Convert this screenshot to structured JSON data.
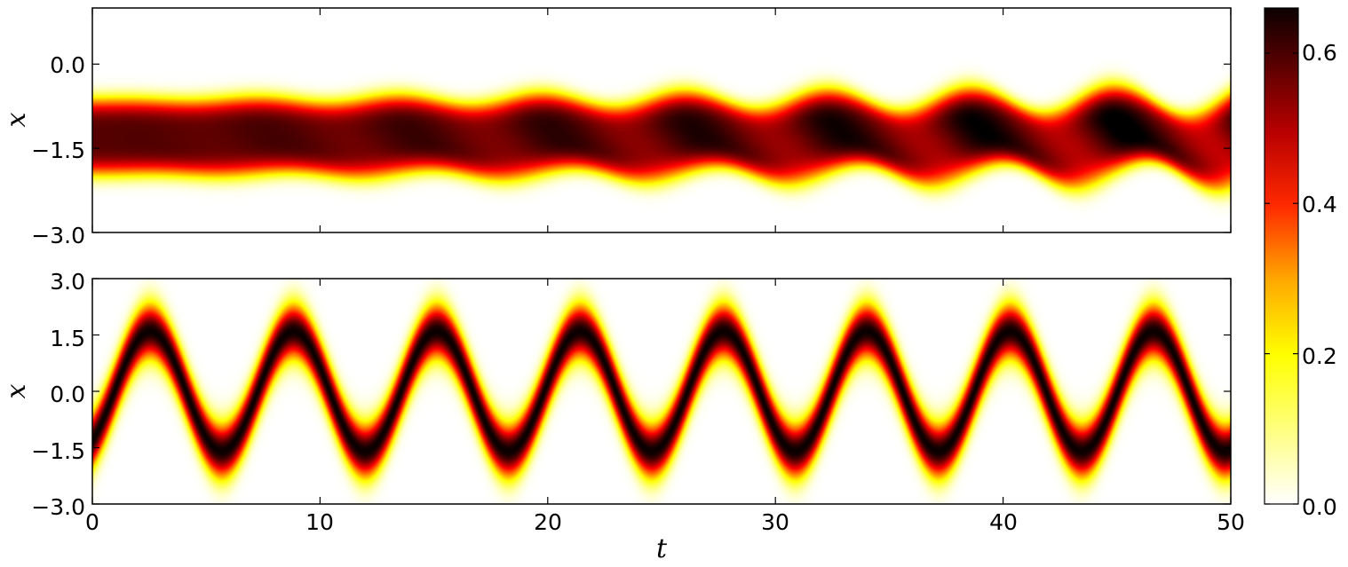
{
  "chart_data": [
    {
      "type": "heatmap",
      "panel": "top",
      "title": "",
      "xlabel": "",
      "ylabel": "x",
      "xlim": [
        0,
        50
      ],
      "ylim": [
        -3.0,
        1.0
      ],
      "x_ticks": [
        0,
        10,
        20,
        30,
        40,
        50
      ],
      "x_tick_labels_shown": false,
      "y_ticks": [
        0.0,
        -1.5,
        -3.0
      ],
      "y_tick_labels": [
        "0.0",
        "−1.5",
        "−3.0"
      ],
      "density_model": {
        "center": -1.3,
        "width": 0.55,
        "peak": 0.58,
        "oscillation_period": 6.3,
        "oscillation_amplitude_start": 0.0,
        "oscillation_amplitude_end": 0.35
      },
      "colormap": "hot_r",
      "grid": false
    },
    {
      "type": "heatmap",
      "panel": "bottom",
      "title": "",
      "xlabel": "t",
      "ylabel": "x",
      "xlim": [
        0,
        50
      ],
      "ylim": [
        -3.0,
        3.0
      ],
      "x_ticks": [
        0,
        10,
        20,
        30,
        40,
        50
      ],
      "x_tick_labels": [
        "0",
        "10",
        "20",
        "30",
        "40",
        "50"
      ],
      "y_ticks": [
        3.0,
        1.5,
        0.0,
        -1.5,
        -3.0
      ],
      "y_tick_labels": [
        "3.0",
        "1.5",
        "0.0",
        "−1.5",
        "−3.0"
      ],
      "density_model": {
        "oscillation_center": 0.0,
        "oscillation_amplitude": 1.6,
        "oscillation_period": 6.3,
        "phase_at_t0_position": 1.3,
        "width": 0.5,
        "peak": 0.65
      },
      "colormap": "hot_r",
      "grid": false
    }
  ],
  "colorbar": {
    "min": 0.0,
    "max": 0.66,
    "ticks": [
      0.0,
      0.2,
      0.4,
      0.6
    ],
    "tick_labels": [
      "0.0",
      "0.2",
      "0.4",
      "0.6"
    ]
  }
}
